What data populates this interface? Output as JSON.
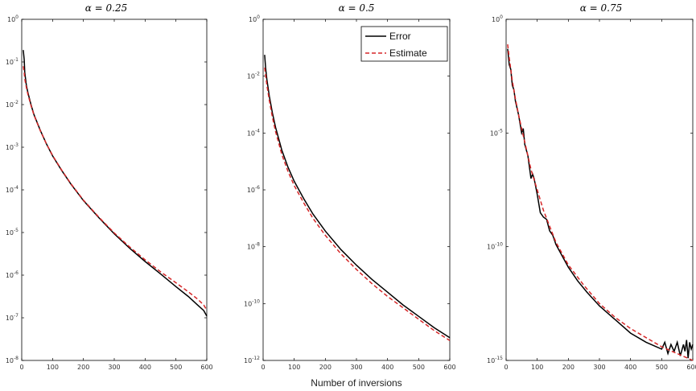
{
  "figure": {
    "xlabel": "Number of inversions"
  },
  "chart_data": [
    {
      "type": "line",
      "title": "α = 0.25",
      "xlabel": "",
      "ylabel": "",
      "xlim": [
        0,
        600
      ],
      "xticks": [
        0,
        100,
        200,
        300,
        400,
        500,
        600
      ],
      "yscale": "log",
      "ylim_exp": [
        -8,
        0
      ],
      "yticks_exp": [
        -8,
        -7,
        -6,
        -5,
        -4,
        -3,
        -2,
        -1,
        0
      ],
      "grid": false,
      "legend": null,
      "series": [
        {
          "name": "Error",
          "color": "#000000",
          "dash": "solid",
          "x": [
            5,
            8,
            10,
            15,
            20,
            30,
            40,
            60,
            80,
            100,
            130,
            160,
            200,
            250,
            300,
            350,
            400,
            450,
            500,
            540,
            570,
            590,
            600
          ],
          "y_exp": [
            -0.72,
            -0.95,
            -1.25,
            -1.55,
            -1.72,
            -2.0,
            -2.24,
            -2.6,
            -2.92,
            -3.2,
            -3.55,
            -3.87,
            -4.25,
            -4.65,
            -5.03,
            -5.37,
            -5.68,
            -5.97,
            -6.27,
            -6.5,
            -6.7,
            -6.83,
            -6.96
          ]
        },
        {
          "name": "Estimate",
          "color": "#d62728",
          "dash": "dashed",
          "x": [
            5,
            8,
            10,
            15,
            20,
            30,
            40,
            60,
            80,
            100,
            130,
            160,
            200,
            250,
            300,
            350,
            400,
            450,
            500,
            540,
            570,
            590,
            600
          ],
          "y_exp": [
            -1.1,
            -1.25,
            -1.4,
            -1.6,
            -1.76,
            -2.02,
            -2.25,
            -2.61,
            -2.92,
            -3.19,
            -3.54,
            -3.86,
            -4.24,
            -4.64,
            -5.01,
            -5.34,
            -5.64,
            -5.92,
            -6.18,
            -6.39,
            -6.56,
            -6.7,
            -6.82
          ]
        }
      ]
    },
    {
      "type": "line",
      "title": "α = 0.5",
      "xlabel": "Number of inversions",
      "ylabel": "",
      "xlim": [
        0,
        600
      ],
      "xticks": [
        0,
        100,
        200,
        300,
        400,
        500,
        600
      ],
      "yscale": "log",
      "ylim_exp": [
        -12,
        0
      ],
      "yticks_exp": [
        -12,
        -10,
        -8,
        -6,
        -4,
        -2,
        0
      ],
      "grid": false,
      "legend": "top-right",
      "series": [
        {
          "name": "Error",
          "color": "#000000",
          "dash": "solid",
          "x": [
            5,
            8,
            12,
            20,
            30,
            40,
            60,
            80,
            100,
            130,
            160,
            200,
            250,
            300,
            350,
            400,
            450,
            500,
            550,
            600
          ],
          "y_exp": [
            -1.25,
            -1.7,
            -2.1,
            -2.7,
            -3.3,
            -3.8,
            -4.6,
            -5.2,
            -5.7,
            -6.3,
            -6.85,
            -7.45,
            -8.1,
            -8.65,
            -9.15,
            -9.6,
            -10.05,
            -10.45,
            -10.85,
            -11.2
          ]
        },
        {
          "name": "Estimate",
          "color": "#d62728",
          "dash": "dashed",
          "x": [
            5,
            8,
            12,
            20,
            30,
            40,
            60,
            80,
            100,
            130,
            160,
            200,
            250,
            300,
            350,
            400,
            450,
            500,
            550,
            600
          ],
          "y_exp": [
            -1.7,
            -1.95,
            -2.3,
            -2.85,
            -3.45,
            -3.95,
            -4.75,
            -5.35,
            -5.85,
            -6.45,
            -7.0,
            -7.6,
            -8.25,
            -8.8,
            -9.3,
            -9.75,
            -10.15,
            -10.55,
            -10.95,
            -11.3
          ]
        }
      ]
    },
    {
      "type": "line",
      "title": "α = 0.75",
      "xlabel": "",
      "ylabel": "",
      "xlim": [
        0,
        600
      ],
      "xticks": [
        0,
        100,
        200,
        300,
        400,
        500,
        600
      ],
      "yscale": "log",
      "ylim_exp": [
        -15,
        0
      ],
      "yticks_exp": [
        -15,
        -10,
        -5,
        0
      ],
      "grid": false,
      "legend": null,
      "series": [
        {
          "name": "Error",
          "color": "#000000",
          "dash": "solid",
          "x": [
            5,
            10,
            15,
            20,
            25,
            30,
            40,
            50,
            55,
            60,
            70,
            80,
            85,
            90,
            100,
            110,
            120,
            130,
            140,
            150,
            160,
            180,
            200,
            230,
            260,
            300,
            350,
            400,
            450,
            500,
            510,
            520,
            530,
            540,
            550,
            560,
            570,
            575,
            580,
            585,
            590,
            595,
            600
          ],
          "y_exp": [
            -1.3,
            -2.0,
            -2.2,
            -2.9,
            -3.1,
            -3.6,
            -4.2,
            -5.0,
            -4.8,
            -5.5,
            -6.0,
            -7.0,
            -6.8,
            -7.0,
            -7.7,
            -8.5,
            -8.7,
            -8.8,
            -9.3,
            -9.5,
            -9.9,
            -10.4,
            -10.9,
            -11.5,
            -12.0,
            -12.6,
            -13.2,
            -13.8,
            -14.2,
            -14.5,
            -14.2,
            -14.7,
            -14.3,
            -14.6,
            -14.2,
            -14.8,
            -14.3,
            -14.6,
            -14.1,
            -14.9,
            -14.2,
            -14.5,
            -14.3
          ]
        },
        {
          "name": "Estimate",
          "color": "#d62728",
          "dash": "dashed",
          "x": [
            5,
            10,
            20,
            30,
            40,
            50,
            60,
            80,
            100,
            120,
            140,
            160,
            200,
            250,
            300,
            350,
            400,
            450,
            500,
            550,
            600
          ],
          "y_exp": [
            -1.1,
            -1.7,
            -2.7,
            -3.5,
            -4.2,
            -4.8,
            -5.4,
            -6.6,
            -7.5,
            -8.4,
            -9.1,
            -9.8,
            -10.8,
            -11.7,
            -12.5,
            -13.1,
            -13.6,
            -14.0,
            -14.4,
            -14.7,
            -15.0
          ]
        }
      ]
    }
  ]
}
